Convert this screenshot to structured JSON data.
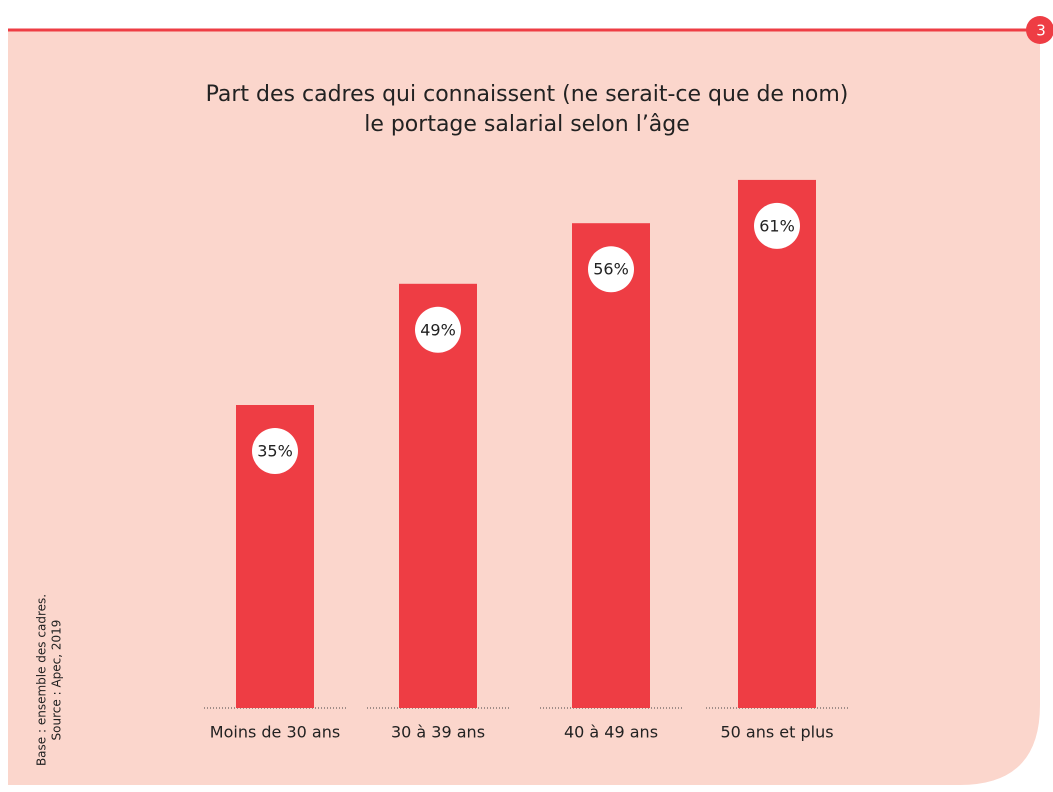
{
  "page_number": "3",
  "chart_data": {
    "type": "bar",
    "title": [
      "Part des cadres qui connaissent (ne serait-ce que de nom)",
      "le portage salarial selon l’âge"
    ],
    "categories": [
      "Moins de 30 ans",
      "30 à 39 ans",
      "40 à 49 ans",
      "50 ans et plus"
    ],
    "values": [
      35,
      49,
      56,
      61
    ],
    "value_labels": [
      "35%",
      "49%",
      "56%",
      "61%"
    ],
    "color": "#ee3d44",
    "ylim": [
      0,
      70
    ],
    "notes": [
      "Base : ensemble des cadres.",
      "Source : Apec, 2019"
    ]
  }
}
